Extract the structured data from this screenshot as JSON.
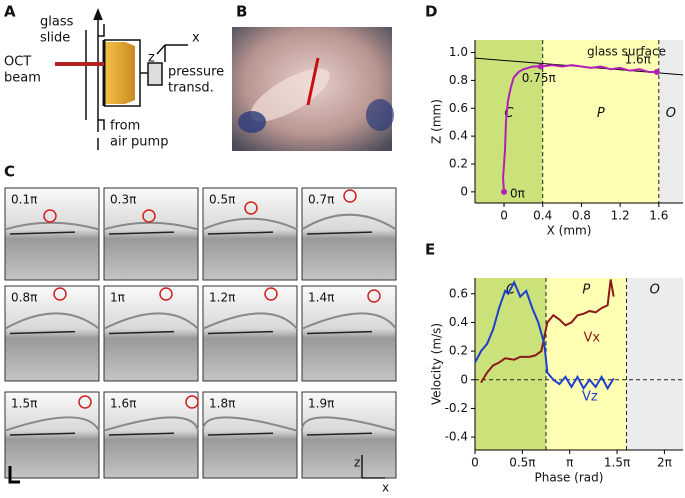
{
  "panel_a": {
    "letter": "A",
    "labels": [
      "glass",
      "slide",
      "OCT",
      "beam",
      "pressure",
      "transd.",
      "from",
      "air pump",
      "x",
      "z"
    ]
  },
  "panel_b": {
    "letter": "B"
  },
  "panel_c": {
    "letter": "C",
    "phases": [
      "0.1π",
      "0.3π",
      "0.5π",
      "0.7π",
      "0.8π",
      "1π",
      "1.2π",
      "1.4π",
      "1.5π",
      "1.6π",
      "1.8π",
      "1.9π"
    ],
    "axes": [
      "z",
      "x"
    ]
  },
  "chart_data": [
    {
      "type": "line",
      "panel_letter": "D",
      "xlabel": "X (mm)",
      "ylabel": "Z (mm)",
      "xlim": [
        -0.3,
        1.85
      ],
      "ylim": [
        -0.08,
        1.09
      ],
      "xticks": [
        0,
        0.4,
        0.8,
        1.2,
        1.6
      ],
      "yticks": [
        0,
        0.2,
        0.4,
        0.6,
        0.8,
        {
          "value": 1,
          "label": "1.0"
        }
      ],
      "region_bounds": [
        0.4,
        1.6
      ],
      "regions": [
        {
          "label": "C",
          "color": "#cbe27a"
        },
        {
          "label": "P",
          "color": "#ffffb4"
        },
        {
          "label": "O",
          "color": "#ececec"
        }
      ],
      "series": [
        {
          "color": "#b21fb8",
          "x": [
            0,
            -0.01,
            0.01,
            0.02,
            0.04,
            0.07,
            0.1,
            0.15,
            0.2,
            0.3,
            0.38,
            0.5,
            0.6,
            0.7,
            0.8,
            0.9,
            1.0,
            1.1,
            1.2,
            1.3,
            1.4,
            1.5,
            1.58
          ],
          "values": [
            0,
            0.1,
            0.3,
            0.5,
            0.65,
            0.75,
            0.82,
            0.86,
            0.88,
            0.9,
            0.9,
            0.91,
            0.9,
            0.91,
            0.9,
            0.89,
            0.9,
            0.88,
            0.89,
            0.87,
            0.88,
            0.86,
            0.86
          ]
        }
      ],
      "points": [
        {
          "label": "0π",
          "x": 0,
          "y": 0
        },
        {
          "label": "0.75π",
          "x": 0.38,
          "y": 0.9
        },
        {
          "label": "1.6π",
          "x": 1.58,
          "y": 0.86
        }
      ],
      "annotation_line": {
        "label": "glass surface",
        "x": [
          -0.3,
          1.85
        ],
        "y": [
          0.96,
          0.84
        ]
      }
    },
    {
      "type": "line",
      "panel_letter": "E",
      "xlabel": "Phase (rad)",
      "ylabel": "Velocity (m/s)",
      "xlim": [
        0,
        6.9
      ],
      "ylim": [
        -0.49,
        0.71
      ],
      "xticks": [
        0,
        {
          "value": 1.5708,
          "label": "0.5π"
        },
        {
          "value": 3.1416,
          "label": "π"
        },
        {
          "value": 4.7124,
          "label": "1.5π"
        },
        {
          "value": 6.2832,
          "label": "2π"
        }
      ],
      "yticks": [
        -0.4,
        -0.2,
        0,
        0.2,
        0.4,
        0.6
      ],
      "hline": 0,
      "region_bounds": [
        2.356,
        5.027
      ],
      "regions": [
        {
          "label": "C",
          "color": "#cbe27a"
        },
        {
          "label": "P",
          "color": "#ffffb4"
        },
        {
          "label": "O",
          "color": "#ececec"
        }
      ],
      "series": [
        {
          "name": "Vx",
          "color": "#8b1a1a",
          "x": [
            0.2,
            0.4,
            0.6,
            0.8,
            1.0,
            1.3,
            1.5,
            1.8,
            2.0,
            2.2,
            2.4,
            2.6,
            2.8,
            3.0,
            3.2,
            3.4,
            3.6,
            3.8,
            4.0,
            4.2,
            4.4,
            4.5,
            4.6
          ],
          "values": [
            -0.02,
            0.05,
            0.1,
            0.12,
            0.15,
            0.14,
            0.16,
            0.16,
            0.17,
            0.2,
            0.4,
            0.45,
            0.42,
            0.38,
            0.4,
            0.45,
            0.46,
            0.48,
            0.47,
            0.5,
            0.52,
            0.7,
            0.58
          ]
        },
        {
          "name": "Vz",
          "color": "#1f3fd0",
          "x": [
            0,
            0.2,
            0.4,
            0.6,
            0.8,
            1.0,
            1.1,
            1.3,
            1.5,
            1.7,
            1.9,
            2.1,
            2.3,
            2.4,
            2.6,
            2.8,
            3.0,
            3.2,
            3.4,
            3.6,
            3.8,
            4.0,
            4.2,
            4.4,
            4.6
          ],
          "values": [
            0.12,
            0.2,
            0.25,
            0.35,
            0.5,
            0.62,
            0.6,
            0.68,
            0.58,
            0.62,
            0.5,
            0.4,
            0.25,
            0.05,
            0.0,
            -0.03,
            0.02,
            -0.05,
            0.02,
            -0.06,
            0.0,
            -0.05,
            0.02,
            -0.06,
            0.01
          ]
        }
      ]
    }
  ]
}
